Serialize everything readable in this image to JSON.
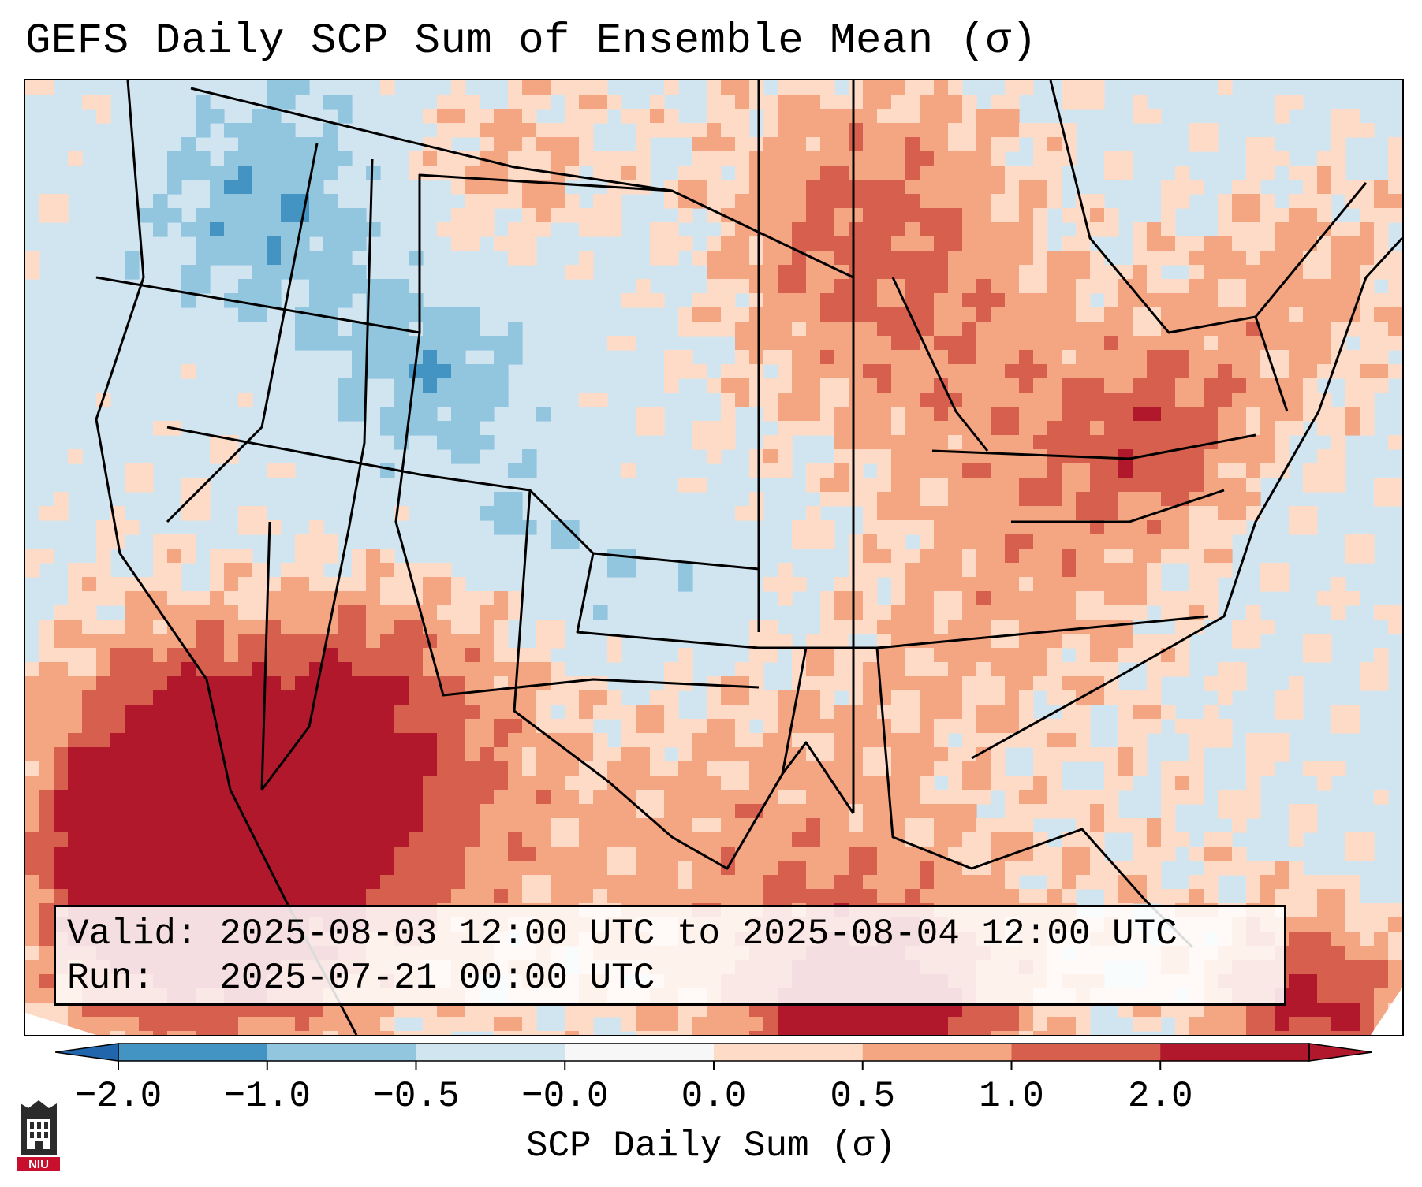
{
  "title": "GEFS Daily SCP Sum of Ensemble Mean (σ)",
  "info": {
    "valid_label": "Valid:",
    "valid_value": "2025-08-03 12:00 UTC to 2025-08-04 12:00 UTC",
    "run_label": "Run:",
    "run_value": "2025-07-21 00:00 UTC"
  },
  "colorbar": {
    "label": "SCP Daily Sum (σ)",
    "ticks": [
      "−2.0",
      "−1.0",
      "−0.5",
      "−0.0",
      "0.0",
      "0.5",
      "1.0",
      "2.0"
    ],
    "colors": [
      "#4393c3",
      "#92c5de",
      "#d1e5f0",
      "#f7f7f7",
      "#fddbc7",
      "#f4a582",
      "#d6604d",
      "#b2182b"
    ],
    "under_color": "#2166ac",
    "over_color": "#b2182b"
  },
  "logo": {
    "text": "NIU",
    "icon": "university-tower-icon"
  }
}
